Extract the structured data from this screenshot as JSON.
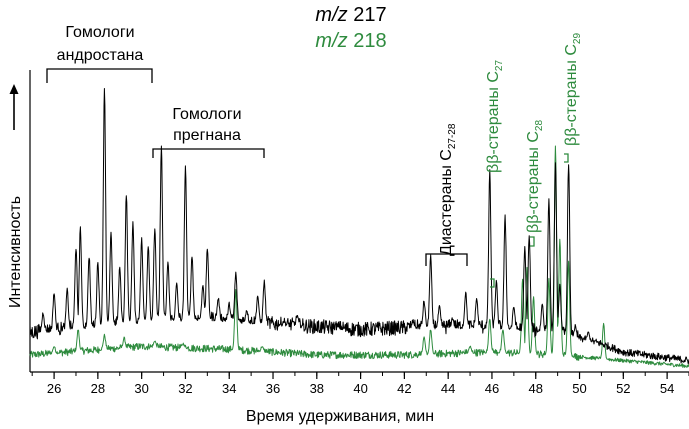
{
  "chart_data": {
    "type": "line",
    "title": "",
    "xlabel": "Время удерживания, мин",
    "ylabel": "Интенсивность",
    "xlim": [
      24.9,
      55.0
    ],
    "ylim": [
      0,
      100
    ],
    "x_ticks": [
      26,
      28,
      30,
      32,
      34,
      36,
      38,
      40,
      42,
      44,
      46,
      48,
      50,
      52,
      54
    ],
    "legend": [
      {
        "series": "m217",
        "italic": "m/z",
        "rest": " 217",
        "color": "#000000"
      },
      {
        "series": "m218",
        "italic": "m/z",
        "rest": " 218",
        "color": "#2e8b3e"
      }
    ],
    "series": [
      {
        "name": "m/z 217",
        "color": "#000000",
        "baseline": [
          [
            24.9,
            13
          ],
          [
            30,
            17
          ],
          [
            33,
            18
          ],
          [
            36,
            16
          ],
          [
            40,
            14
          ],
          [
            43,
            15
          ],
          [
            46,
            15
          ],
          [
            49,
            13
          ],
          [
            51,
            9
          ],
          [
            52,
            6
          ],
          [
            55,
            3
          ]
        ],
        "peaks": [
          [
            25.5,
            20
          ],
          [
            26.0,
            27
          ],
          [
            26.6,
            28
          ],
          [
            27.0,
            43
          ],
          [
            27.2,
            50
          ],
          [
            27.6,
            40
          ],
          [
            28.0,
            38
          ],
          [
            28.3,
            100
          ],
          [
            28.6,
            48
          ],
          [
            29.0,
            36
          ],
          [
            29.3,
            62
          ],
          [
            29.6,
            52
          ],
          [
            30.0,
            46
          ],
          [
            30.3,
            44
          ],
          [
            30.6,
            50
          ],
          [
            30.9,
            79
          ],
          [
            31.2,
            38
          ],
          [
            31.6,
            30
          ],
          [
            32.0,
            72
          ],
          [
            32.3,
            40
          ],
          [
            32.8,
            30
          ],
          [
            33.0,
            43
          ],
          [
            33.5,
            25
          ],
          [
            34.0,
            23
          ],
          [
            34.3,
            34
          ],
          [
            34.8,
            21
          ],
          [
            35.3,
            26
          ],
          [
            35.6,
            31
          ],
          [
            36.5,
            17
          ],
          [
            37.1,
            19
          ],
          [
            38.1,
            14
          ],
          [
            39.0,
            15
          ],
          [
            40.6,
            14
          ],
          [
            42.4,
            17
          ],
          [
            42.9,
            24
          ],
          [
            43.2,
            40
          ],
          [
            43.6,
            22
          ],
          [
            44.2,
            18
          ],
          [
            44.8,
            27
          ],
          [
            45.3,
            25
          ],
          [
            45.9,
            70
          ],
          [
            46.2,
            31
          ],
          [
            46.6,
            54
          ],
          [
            47.0,
            22
          ],
          [
            47.5,
            43
          ],
          [
            47.7,
            47
          ],
          [
            48.3,
            23
          ],
          [
            48.6,
            60
          ],
          [
            48.9,
            73
          ],
          [
            49.1,
            30
          ],
          [
            49.5,
            73
          ],
          [
            49.8,
            15
          ],
          [
            50.4,
            13
          ]
        ]
      },
      {
        "name": "m/z 218",
        "color": "#2e8b3e",
        "baseline": [
          [
            24.9,
            5
          ],
          [
            30,
            8
          ],
          [
            34,
            7
          ],
          [
            38,
            5
          ],
          [
            42,
            5
          ],
          [
            46,
            6
          ],
          [
            49,
            5
          ],
          [
            52,
            3
          ],
          [
            55,
            1
          ]
        ],
        "peaks": [
          [
            26.0,
            8
          ],
          [
            27.1,
            14
          ],
          [
            28.3,
            12
          ],
          [
            29.2,
            11
          ],
          [
            30.6,
            10
          ],
          [
            31.9,
            9
          ],
          [
            34.3,
            28
          ],
          [
            35.5,
            8
          ],
          [
            42.9,
            11
          ],
          [
            43.2,
            14
          ],
          [
            45.0,
            8
          ],
          [
            45.9,
            18
          ],
          [
            46.5,
            14
          ],
          [
            47.4,
            32
          ],
          [
            47.6,
            36
          ],
          [
            47.9,
            26
          ],
          [
            48.6,
            32
          ],
          [
            48.9,
            79
          ],
          [
            49.1,
            46
          ],
          [
            49.5,
            38
          ],
          [
            51.1,
            16
          ]
        ]
      }
    ],
    "annotations": [
      {
        "id": "androstane",
        "lines": [
          "Гомологи",
          "андростана"
        ],
        "color": "#000000"
      },
      {
        "id": "pregnane",
        "lines": [
          "Гомологи",
          "прегнана"
        ],
        "color": "#000000"
      },
      {
        "id": "diasteranes",
        "base": "Диастераны C",
        "sub": "27-28",
        "color": "#000000"
      },
      {
        "id": "bb_c27",
        "base": "ββ-стераны C",
        "sub": "27",
        "color": "#2e8b3e"
      },
      {
        "id": "bb_c28",
        "base": "ββ-стераны C",
        "sub": "28",
        "color": "#2e8b3e"
      },
      {
        "id": "bb_c29",
        "base": "ββ-стераны C",
        "sub": "29",
        "color": "#2e8b3e"
      }
    ]
  }
}
